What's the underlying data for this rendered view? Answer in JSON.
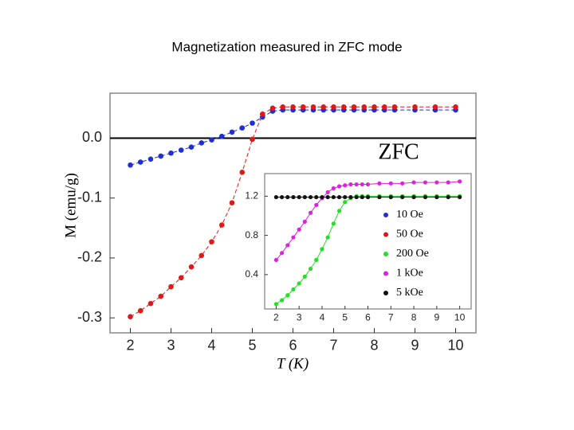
{
  "title": "Magnetization measured in ZFC mode",
  "chart_data": [
    {
      "type": "line",
      "x_label": "T (K)",
      "y_label": "M (emu/g)",
      "annotation": "ZFC",
      "reference_line": 0,
      "x": [
        2,
        2.25,
        2.5,
        2.75,
        3,
        3.25,
        3.5,
        3.75,
        4,
        4.25,
        4.5,
        4.75,
        5,
        5.25,
        5.5,
        5.75,
        6,
        6.25,
        6.5,
        6.75,
        7,
        7.25,
        7.5,
        7.75,
        8,
        8.25,
        8.5,
        9,
        9.5,
        10
      ],
      "series": [
        {
          "color": "#1f2fd6",
          "values": [
            -0.045,
            -0.04,
            -0.035,
            -0.03,
            -0.025,
            -0.02,
            -0.015,
            -0.008,
            -0.003,
            0.003,
            0.01,
            0.017,
            0.025,
            0.035,
            0.045,
            0.047,
            0.047,
            0.047,
            0.047,
            0.047,
            0.047,
            0.047,
            0.047,
            0.047,
            0.047,
            0.047,
            0.047,
            0.047,
            0.047,
            0.047
          ]
        },
        {
          "color": "#e01818",
          "values": [
            -0.298,
            -0.288,
            -0.276,
            -0.264,
            -0.248,
            -0.233,
            -0.215,
            -0.196,
            -0.173,
            -0.145,
            -0.108,
            -0.057,
            -0.002,
            0.04,
            0.05,
            0.052,
            0.052,
            0.052,
            0.052,
            0.052,
            0.052,
            0.052,
            0.052,
            0.052,
            0.052,
            0.052,
            0.052,
            0.052,
            0.052,
            0.052
          ]
        }
      ],
      "xlim": [
        1.5,
        10.5
      ],
      "ylim": [
        -0.325,
        0.075
      ],
      "xticks": [
        2,
        3,
        4,
        5,
        6,
        7,
        8,
        9,
        10
      ],
      "yticks": [
        {
          "value": 0,
          "label": "0.0"
        },
        -0.1,
        -0.2,
        -0.3
      ]
    },
    {
      "type": "line",
      "x": [
        2,
        2.25,
        2.5,
        2.75,
        3,
        3.25,
        3.5,
        3.75,
        4,
        4.25,
        4.5,
        4.75,
        5,
        5.25,
        5.5,
        5.75,
        6,
        6.5,
        7,
        7.5,
        8,
        8.5,
        9,
        9.5,
        10
      ],
      "series": [
        {
          "name": "10 Oe",
          "color": "#1f2fd6"
        },
        {
          "name": "50 Oe",
          "color": "#e01818"
        },
        {
          "name": "200 Oe",
          "color": "#22e022",
          "values": [
            0.1,
            0.14,
            0.19,
            0.25,
            0.31,
            0.38,
            0.46,
            0.55,
            0.66,
            0.78,
            0.92,
            1.05,
            1.14,
            1.18,
            1.2,
            1.2,
            1.2,
            1.2,
            1.2,
            1.2,
            1.2,
            1.2,
            1.2,
            1.2,
            1.2
          ]
        },
        {
          "name": "1 kOe",
          "color": "#e020e0",
          "values": [
            0.55,
            0.62,
            0.7,
            0.78,
            0.86,
            0.94,
            1.03,
            1.11,
            1.18,
            1.24,
            1.28,
            1.3,
            1.31,
            1.32,
            1.32,
            1.32,
            1.32,
            1.33,
            1.33,
            1.33,
            1.34,
            1.34,
            1.34,
            1.34,
            1.35
          ]
        },
        {
          "name": "5 kOe",
          "color": "#111111",
          "values": [
            1.19,
            1.19,
            1.19,
            1.19,
            1.19,
            1.19,
            1.19,
            1.19,
            1.19,
            1.19,
            1.19,
            1.19,
            1.19,
            1.19,
            1.19,
            1.19,
            1.19,
            1.19,
            1.19,
            1.19,
            1.19,
            1.19,
            1.19,
            1.19,
            1.19
          ]
        }
      ],
      "xlim": [
        1.5,
        10.5
      ],
      "ylim": [
        0.05,
        1.43
      ],
      "xticks": [
        2,
        3,
        4,
        5,
        6,
        7,
        8,
        9,
        10
      ],
      "yticks": [
        0.4,
        0.8,
        1.2
      ]
    }
  ]
}
